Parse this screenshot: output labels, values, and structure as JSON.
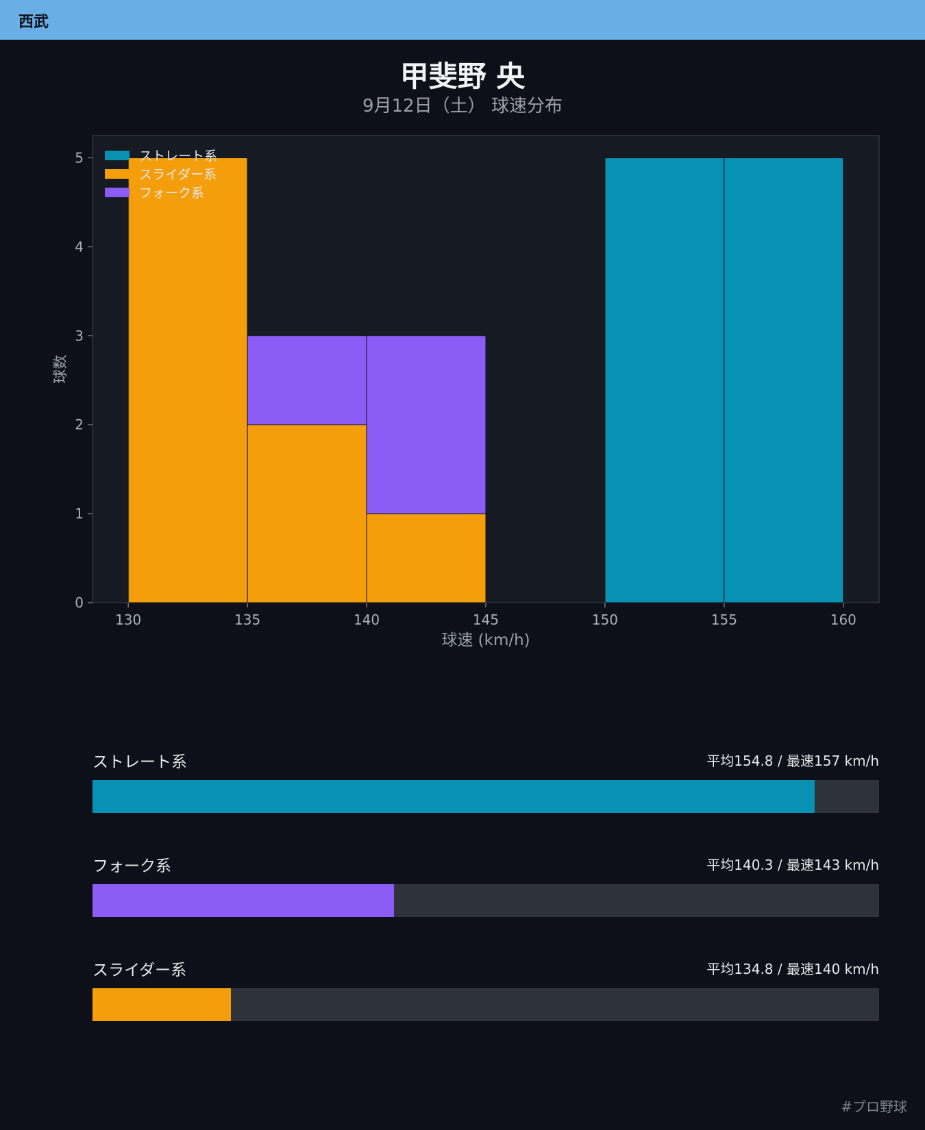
{
  "header": {
    "team": "西武"
  },
  "title": "甲斐野 央",
  "subtitle": "9月12日（土） 球速分布",
  "chart_data": {
    "type": "bar",
    "stacked": true,
    "xlabel": "球速 (km/h)",
    "ylabel": "球数",
    "xlim": [
      128.5,
      161.5
    ],
    "ylim": [
      0,
      5.25
    ],
    "x_ticks": [
      130,
      135,
      140,
      145,
      150,
      155,
      160
    ],
    "y_ticks": [
      0,
      1,
      2,
      3,
      4,
      5
    ],
    "bins": [
      [
        130,
        135
      ],
      [
        135,
        140
      ],
      [
        140,
        145
      ],
      [
        145,
        150
      ],
      [
        150,
        155
      ],
      [
        155,
        160
      ]
    ],
    "legend_position": "top-left",
    "series": [
      {
        "name": "ストレート系",
        "color": "#0891b2",
        "values": [
          0,
          0,
          0,
          0,
          5,
          5
        ]
      },
      {
        "name": "スライダー系",
        "color": "#f59e0b",
        "values": [
          5,
          2,
          1,
          0,
          0,
          0
        ]
      },
      {
        "name": "フォーク系",
        "color": "#8b5cf6",
        "values": [
          0,
          1,
          2,
          0,
          0,
          0
        ]
      }
    ]
  },
  "stats": [
    {
      "name": "ストレート系",
      "text": "平均154.8 / 最速157 km/h",
      "fill_fraction": 0.918,
      "color": "#0891b2"
    },
    {
      "name": "フォーク系",
      "text": "平均140.3 / 最速143 km/h",
      "fill_fraction": 0.383,
      "color": "#8b5cf6"
    },
    {
      "name": "スライダー系",
      "text": "平均134.8 / 最速140 km/h",
      "fill_fraction": 0.176,
      "color": "#f59e0b"
    }
  ],
  "footer": {
    "hashtag": "#プロ野球"
  }
}
